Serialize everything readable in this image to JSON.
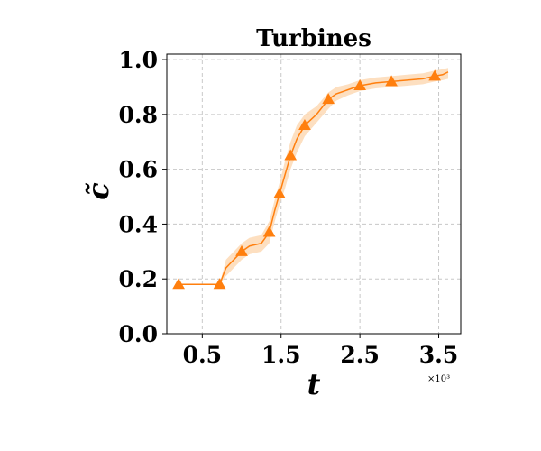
{
  "chart_data": {
    "type": "line",
    "title": "Turbines",
    "xlabel": "t",
    "ylabel": "c̃",
    "x_multiplier": "×10³",
    "xlim": [
      0.05,
      3.78
    ],
    "ylim": [
      0.0,
      1.02
    ],
    "x_ticks": [
      0.5,
      1.5,
      2.5,
      3.5
    ],
    "x_tick_labels": [
      "0.5",
      "1.5",
      "2.5",
      "3.5"
    ],
    "y_ticks": [
      0.0,
      0.2,
      0.4,
      0.6,
      0.8,
      1.0
    ],
    "y_tick_labels": [
      "0.0",
      "0.2",
      "0.4",
      "0.6",
      "0.8",
      "1.0"
    ],
    "grid": true,
    "color": "#ff7f0e",
    "band_color": "#fdd9b5",
    "series": [
      {
        "values": [
          [
            0.2,
            0.18
          ],
          [
            0.72,
            0.18
          ],
          [
            0.8,
            0.24
          ],
          [
            0.9,
            0.27
          ],
          [
            1.0,
            0.3
          ],
          [
            1.1,
            0.32
          ],
          [
            1.25,
            0.33
          ],
          [
            1.35,
            0.37
          ],
          [
            1.42,
            0.45
          ],
          [
            1.48,
            0.51
          ],
          [
            1.55,
            0.58
          ],
          [
            1.62,
            0.65
          ],
          [
            1.7,
            0.71
          ],
          [
            1.8,
            0.76
          ],
          [
            1.95,
            0.8
          ],
          [
            2.1,
            0.855
          ],
          [
            2.2,
            0.875
          ],
          [
            2.35,
            0.89
          ],
          [
            2.5,
            0.905
          ],
          [
            2.7,
            0.915
          ],
          [
            2.9,
            0.92
          ],
          [
            3.1,
            0.925
          ],
          [
            3.3,
            0.93
          ],
          [
            3.45,
            0.94
          ],
          [
            3.55,
            0.945
          ],
          [
            3.62,
            0.955
          ]
        ],
        "band_lower": [
          0.18,
          0.18,
          0.21,
          0.24,
          0.27,
          0.29,
          0.3,
          0.33,
          0.41,
          0.47,
          0.53,
          0.6,
          0.66,
          0.72,
          0.77,
          0.82,
          0.85,
          0.87,
          0.885,
          0.895,
          0.9,
          0.905,
          0.91,
          0.92,
          0.925,
          0.93
        ],
        "band_upper": [
          0.18,
          0.18,
          0.27,
          0.3,
          0.33,
          0.35,
          0.36,
          0.41,
          0.49,
          0.55,
          0.63,
          0.7,
          0.76,
          0.8,
          0.83,
          0.88,
          0.9,
          0.91,
          0.925,
          0.935,
          0.94,
          0.945,
          0.95,
          0.96,
          0.965,
          0.97
        ],
        "markers": [
          [
            0.2,
            0.18
          ],
          [
            0.72,
            0.18
          ],
          [
            1.0,
            0.3
          ],
          [
            1.35,
            0.37
          ],
          [
            1.48,
            0.51
          ],
          [
            1.62,
            0.65
          ],
          [
            1.8,
            0.76
          ],
          [
            2.1,
            0.855
          ],
          [
            2.5,
            0.905
          ],
          [
            2.9,
            0.92
          ],
          [
            3.45,
            0.94
          ]
        ]
      }
    ]
  }
}
